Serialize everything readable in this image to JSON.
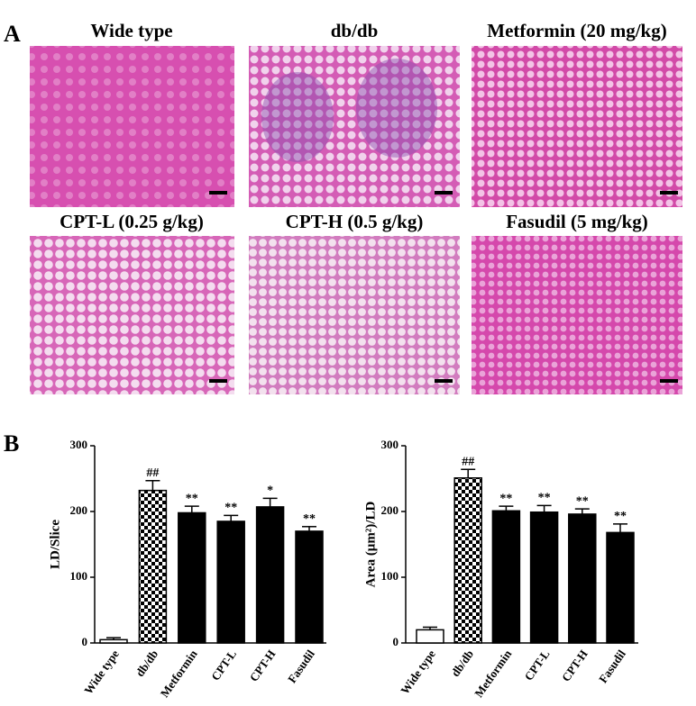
{
  "panel_labels": [
    "A",
    "B"
  ],
  "images": [
    {
      "title": "Wide type"
    },
    {
      "title": "db/db"
    },
    {
      "title": "Metformin (20 mg/kg)"
    },
    {
      "title": "CPT-L (0.25 g/kg)"
    },
    {
      "title": "CPT-H (0.5 g/kg)"
    },
    {
      "title": "Fasudil (5 mg/kg)"
    }
  ],
  "chart_data": [
    {
      "type": "bar",
      "y_label": "LD/Slice",
      "categories": [
        "Wide type",
        "db/db",
        "Metformin",
        "CPT-L",
        "CPT-H",
        "Fasudil"
      ],
      "values": [
        5,
        232,
        198,
        185,
        207,
        170
      ],
      "errors": [
        3,
        15,
        10,
        9,
        13,
        7
      ],
      "annotations": [
        null,
        "##",
        "**",
        "**",
        "*",
        "**"
      ],
      "fills": [
        "white",
        "checkerboard",
        "black",
        "black",
        "black",
        "black"
      ],
      "ylim": [
        0,
        300
      ],
      "yticks": [
        0,
        100,
        200,
        300
      ]
    },
    {
      "type": "bar",
      "y_label": "Area (μm²)/LD",
      "categories": [
        "Wide type",
        "db/db",
        "Metformin",
        "CPT-L",
        "CPT-H",
        "Fasudil"
      ],
      "values": [
        20,
        251,
        201,
        199,
        196,
        168
      ],
      "errors": [
        4,
        13,
        7,
        10,
        8,
        13
      ],
      "annotations": [
        null,
        "##",
        "**",
        "**",
        "**",
        "**"
      ],
      "fills": [
        "white",
        "checkerboard",
        "black",
        "black",
        "black",
        "black"
      ],
      "ylim": [
        0,
        300
      ],
      "yticks": [
        0,
        100,
        200,
        300
      ]
    }
  ]
}
